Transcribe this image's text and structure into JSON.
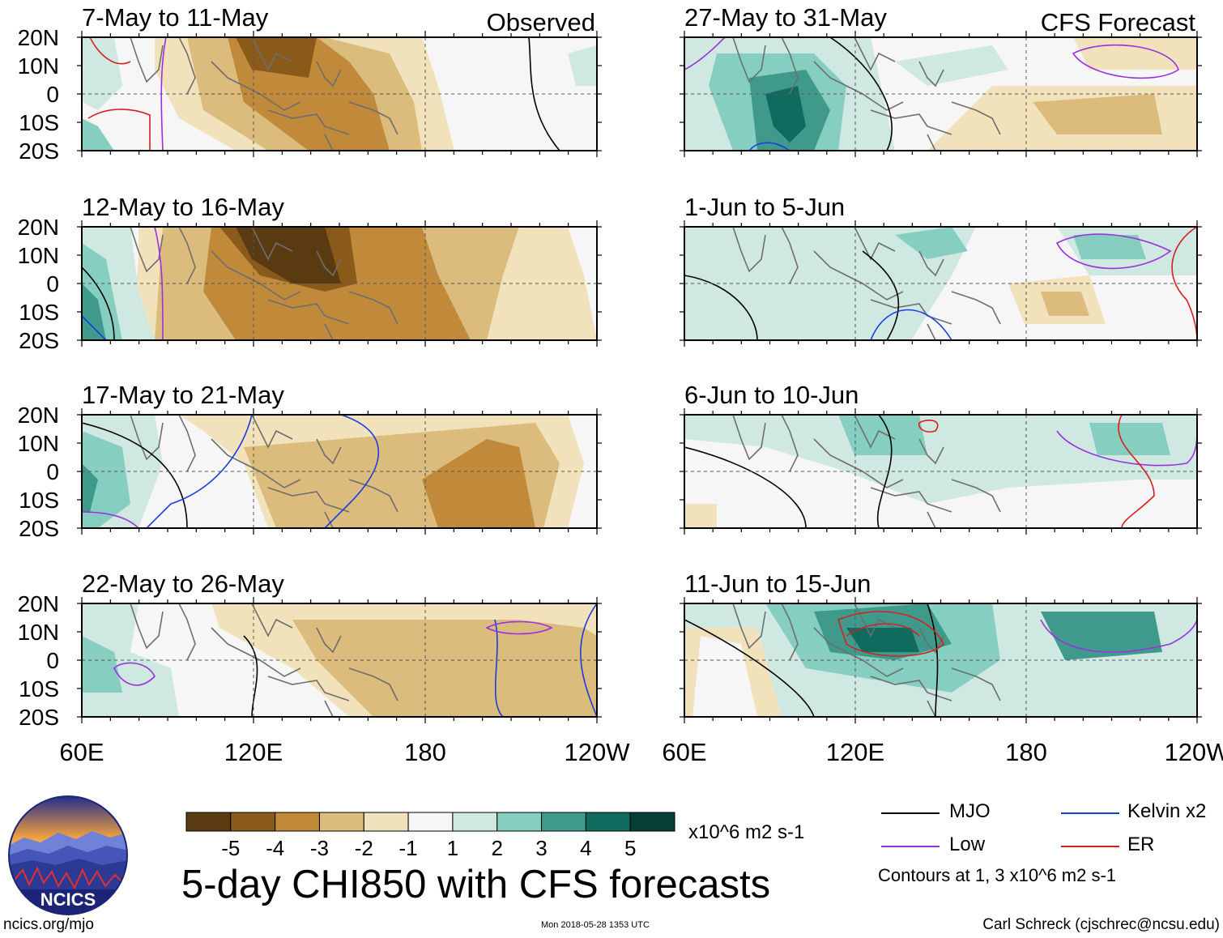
{
  "figure": {
    "title": "5-day CHI850 with CFS forecasts",
    "observed_label": "Observed",
    "forecast_label": "CFS Forecast",
    "footer_url": "ncics.org/mjo",
    "footer_date": "Mon 2018-05-28 1353 UTC",
    "footer_credit": "Carl Schreck (cjschrec@ncsu.edu)",
    "logo_text": "NCICS"
  },
  "axes": {
    "lat_labels": [
      "20N",
      "10N",
      "0",
      "10S",
      "20S"
    ],
    "lon_labels": [
      "60E",
      "120E",
      "180",
      "120W"
    ]
  },
  "panels": [
    {
      "id": "p1",
      "column": "observed",
      "period": "7-May to 11-May",
      "anomaly_sign": "negative"
    },
    {
      "id": "p2",
      "column": "observed",
      "period": "12-May to 16-May",
      "anomaly_sign": "negative"
    },
    {
      "id": "p3",
      "column": "observed",
      "period": "17-May to 21-May",
      "anomaly_sign": "negative"
    },
    {
      "id": "p4",
      "column": "observed",
      "period": "22-May to 26-May",
      "anomaly_sign": "negative"
    },
    {
      "id": "p5",
      "column": "forecast",
      "period": "27-May to 31-May",
      "anomaly_sign": "positive"
    },
    {
      "id": "p6",
      "column": "forecast",
      "period": "1-Jun to 5-Jun",
      "anomaly_sign": "positive"
    },
    {
      "id": "p7",
      "column": "forecast",
      "period": "6-Jun to 10-Jun",
      "anomaly_sign": "positive"
    },
    {
      "id": "p8",
      "column": "forecast",
      "period": "11-Jun to 15-Jun",
      "anomaly_sign": "positive"
    }
  ],
  "colorbar": {
    "units": "x10^6 m2 s-1",
    "tick_labels": [
      "-5",
      "-4",
      "-3",
      "-2",
      "-1",
      "1",
      "2",
      "3",
      "4",
      "5"
    ],
    "colors": [
      "#5a3a10",
      "#8a5a1a",
      "#c08a3a",
      "#dcbc7c",
      "#f2e2bc",
      "#f6f6f6",
      "#cfe9e2",
      "#86cfc0",
      "#3f9a8c",
      "#0e6b5e",
      "#063f36"
    ]
  },
  "legend": {
    "items": [
      {
        "label": "MJO",
        "color": "#000000"
      },
      {
        "label": "Kelvin x2",
        "color": "#1a3de0"
      },
      {
        "label": "Low",
        "color": "#9b30e0"
      },
      {
        "label": "ER",
        "color": "#d62020"
      }
    ],
    "note": "Contours at 1, 3 x10^6 m2 s-1"
  },
  "palette": {
    "neutral": "#f6f6f6",
    "land_outline": "#6e6e6e",
    "zero_line": "#555555"
  }
}
